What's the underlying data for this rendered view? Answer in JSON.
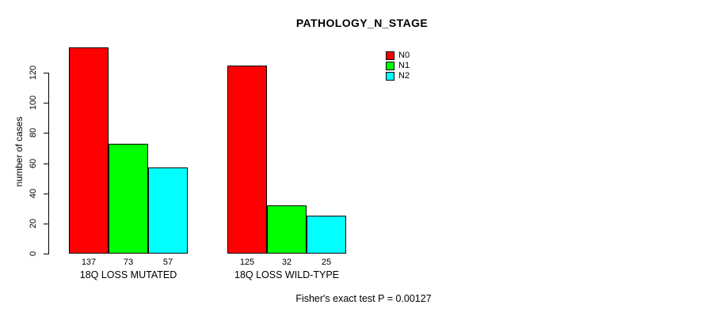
{
  "title": "PATHOLOGY_N_STAGE",
  "footer": "Fisher's exact test P = 0.00127",
  "y_axis": {
    "label": "number of cases"
  },
  "legend": {
    "position": "top-right",
    "entries": [
      {
        "label": "N0",
        "color": "#FF0000"
      },
      {
        "label": "N1",
        "color": "#00FF00"
      },
      {
        "label": "N2",
        "color": "#00FFFF"
      }
    ]
  },
  "chart_data": {
    "type": "bar",
    "title": "PATHOLOGY_N_STAGE",
    "categories": [
      "18Q LOSS MUTATED",
      "18Q LOSS WILD-TYPE"
    ],
    "series": [
      {
        "name": "N0",
        "color": "#FF0000",
        "values": [
          137,
          125
        ]
      },
      {
        "name": "N1",
        "color": "#00FF00",
        "values": [
          73,
          32
        ]
      },
      {
        "name": "N2",
        "color": "#00FFFF",
        "values": [
          57,
          25
        ]
      }
    ],
    "xlabel": "",
    "ylabel": "number of cases",
    "ylim": [
      0,
      140
    ],
    "yticks": [
      0,
      20,
      40,
      60,
      80,
      100,
      120
    ],
    "grid": false,
    "bar_value_labels_shown": true,
    "legend_position": "top-right",
    "annotation": "Fisher's exact test P = 0.00127"
  }
}
